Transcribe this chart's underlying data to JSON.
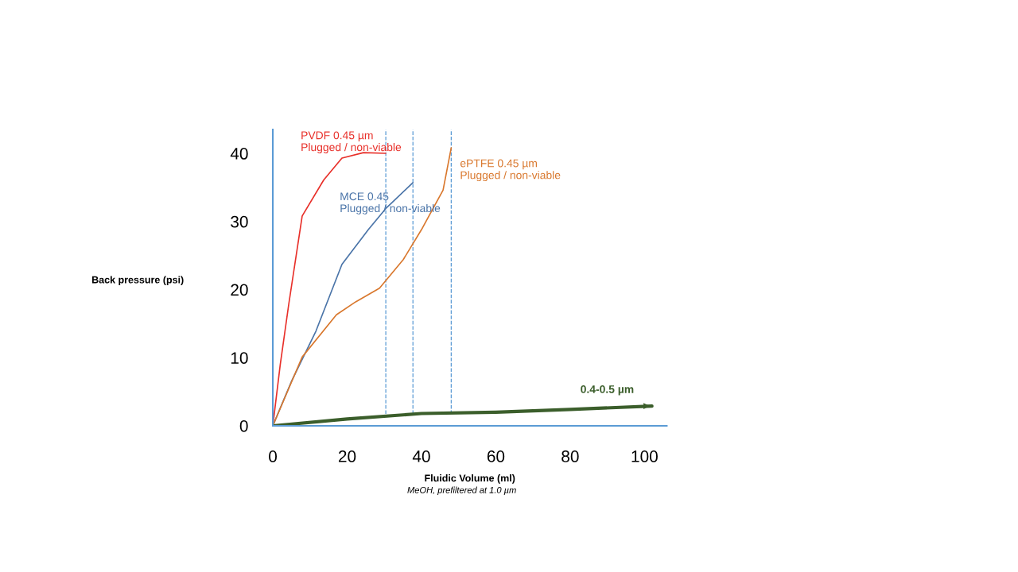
{
  "chart_data": {
    "type": "line",
    "xlabel": "Fluidic Volume (ml)",
    "ylabel": "Back pressure (psi)",
    "annotations": [
      "MeOH, prefiltered at 1.0 µm"
    ],
    "xlim": [
      0,
      106
    ],
    "ylim": [
      0,
      43.5
    ],
    "xticks": [
      0,
      20,
      40,
      60,
      80,
      100
    ],
    "yticks": [
      0,
      10,
      20,
      30,
      40
    ],
    "grid": false,
    "legend": false,
    "marker": "none",
    "line_style": "solid",
    "series": [
      {
        "name": "PVDF 0.45 µm\nPlugged / non-viable",
        "color": "#e8302a",
        "x": [
          0,
          2,
          4.3,
          7.9,
          13.7,
          18.6,
          24.4,
          30.4
        ],
        "values": [
          0,
          9,
          17.9,
          30.8,
          36.1,
          39.3,
          40.1,
          40.0
        ]
      },
      {
        "name": "MCE 0.45\nPlugged / non-viable",
        "color": "#4a74a8",
        "x": [
          0,
          5,
          11.6,
          18.6,
          25.7,
          30.4,
          37.7
        ],
        "values": [
          0,
          6.5,
          13.9,
          23.7,
          28.8,
          31.9,
          35.7
        ]
      },
      {
        "name": "ePTFE 0.45 µm\nPlugged / non-viable",
        "color": "#d9782e",
        "x": [
          0,
          7.9,
          17.1,
          22.3,
          28.7,
          35.1,
          40,
          45.8,
          48
        ],
        "values": [
          0,
          10.1,
          16.3,
          18.2,
          20.2,
          24.4,
          28.8,
          34.6,
          40.8
        ]
      },
      {
        "name": "0.4-0.5 µm",
        "color": "#3b5e2b",
        "x": [
          0,
          20,
          40,
          60,
          80,
          102
        ],
        "values": [
          0,
          1.0,
          1.8,
          2.0,
          2.4,
          2.9
        ]
      }
    ],
    "ref_lines": [
      {
        "axis": "x",
        "value": 30.4,
        "color": "#5b9bd5",
        "line_style": "dashed"
      },
      {
        "axis": "x",
        "value": 37.7,
        "color": "#5b9bd5",
        "line_style": "dashed"
      },
      {
        "axis": "x",
        "value": 48,
        "color": "#5b9bd5",
        "line_style": "dashed"
      }
    ]
  }
}
